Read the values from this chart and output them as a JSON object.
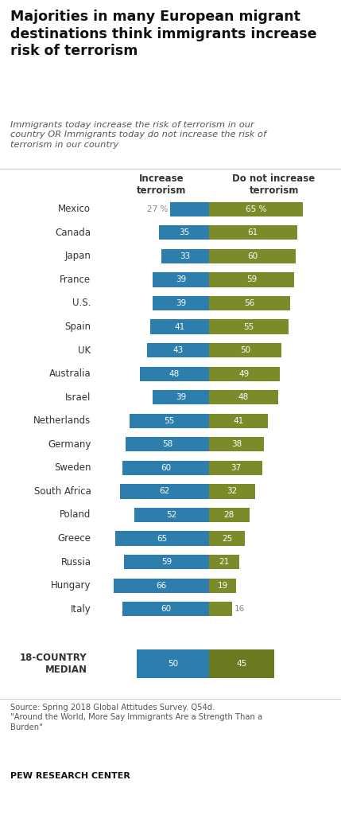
{
  "title": "Majorities in many European migrant\ndestinations think immigrants increase\nrisk of terrorism",
  "subtitle": "Immigrants today increase the risk of terrorism in our\ncountry OR Immigrants today do not increase the risk of\nterrorism in our country",
  "col1_header": "Increase\nterrorism",
  "col2_header": "Do not increase\nterrorism",
  "countries": [
    "Mexico",
    "Canada",
    "Japan",
    "France",
    "U.S.",
    "Spain",
    "UK",
    "Australia",
    "Israel",
    "Netherlands",
    "Germany",
    "Sweden",
    "South Africa",
    "Poland",
    "Greece",
    "Russia",
    "Hungary",
    "Italy"
  ],
  "increase": [
    27,
    35,
    33,
    39,
    39,
    41,
    43,
    48,
    39,
    55,
    58,
    60,
    62,
    52,
    65,
    59,
    66,
    60
  ],
  "not_increase": [
    65,
    61,
    60,
    59,
    56,
    55,
    50,
    49,
    48,
    41,
    38,
    37,
    32,
    28,
    25,
    21,
    19,
    16
  ],
  "median_increase": 50,
  "median_not_increase": 45,
  "median_label": "18-COUNTRY\nMEDIAN",
  "blue_color": "#2E7EAD",
  "green_color": "#7B8B2A",
  "median_green_color": "#6B7A20",
  "source_text": "Source: Spring 2018 Global Attitudes Survey. Q54d.\n\"Around the World, More Say Immigrants Are a Strength Than a\nBurden\"",
  "pew_text": "PEW RESEARCH CENTER",
  "background_color": "#FFFFFF",
  "font_color": "#333333",
  "max_val": 80
}
